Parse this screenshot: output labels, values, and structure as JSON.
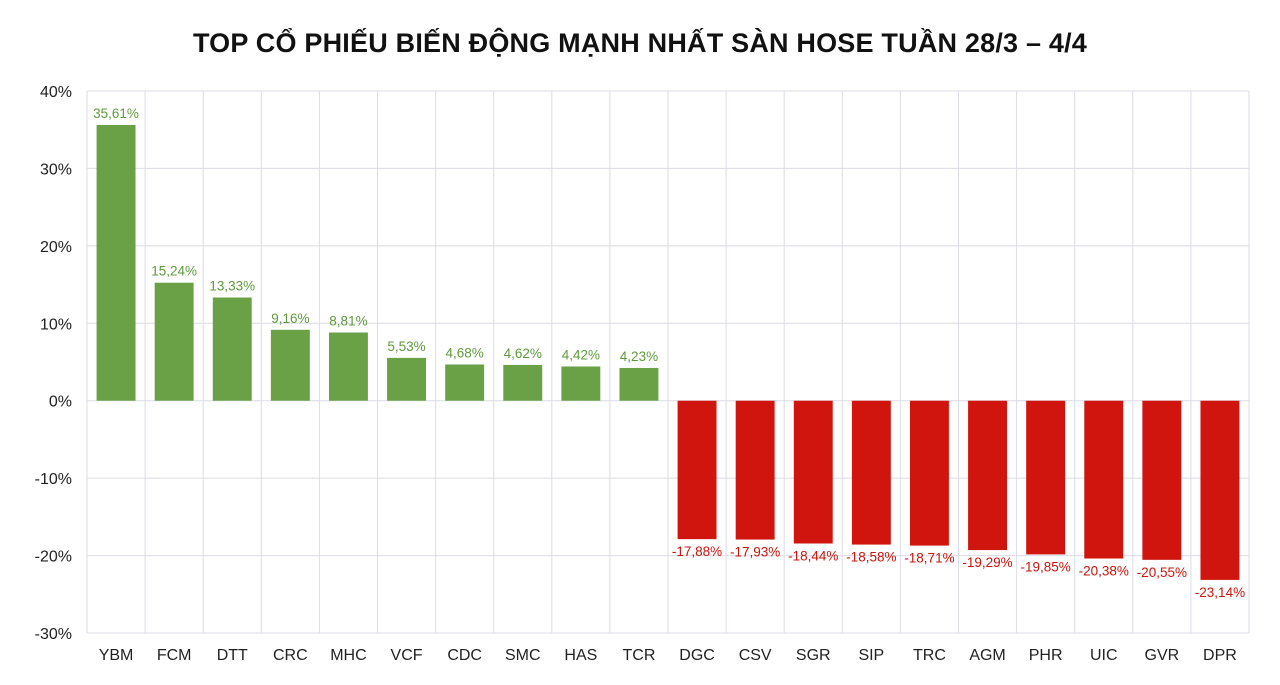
{
  "chart_data": {
    "type": "bar",
    "title": "TOP CỔ PHIẾU BIẾN ĐỘNG MẠNH NHẤT SÀN HOSE TUẦN 28/3 – 4/4",
    "xlabel": "",
    "ylabel": "",
    "ylim": [
      -30,
      40
    ],
    "yticks": [
      "40%",
      "30%",
      "20%",
      "10%",
      "0%",
      "-10%",
      "-20%",
      "-30%"
    ],
    "ytick_values": [
      40,
      30,
      20,
      10,
      0,
      -10,
      -20,
      -30
    ],
    "grid": true,
    "categories": [
      "YBM",
      "FCM",
      "DTT",
      "CRC",
      "MHC",
      "VCF",
      "CDC",
      "SMC",
      "HAS",
      "TCR",
      "DGC",
      "CSV",
      "SGR",
      "SIP",
      "TRC",
      "AGM",
      "PHR",
      "UIC",
      "GVR",
      "DPR"
    ],
    "values": [
      35.61,
      15.24,
      13.33,
      9.16,
      8.81,
      5.53,
      4.68,
      4.62,
      4.42,
      4.23,
      -17.88,
      -17.93,
      -18.44,
      -18.58,
      -18.71,
      -19.29,
      -19.85,
      -20.38,
      -20.55,
      -23.14
    ],
    "data_labels": [
      "35,61%",
      "15,24%",
      "13,33%",
      "9,16%",
      "8,81%",
      "5,53%",
      "4,68%",
      "4,62%",
      "4,42%",
      "4,23%",
      "-17,88%",
      "-17,93%",
      "-18,44%",
      "-18,58%",
      "-18,71%",
      "-19,29%",
      "-19,85%",
      "-20,38%",
      "-20,55%",
      "-23,14%"
    ],
    "colors": {
      "positive": "#6aa046",
      "negative": "#d0150e",
      "positive_label": "#5f9a3c",
      "negative_label": "#c8150e",
      "grid": "#dcdce6"
    }
  }
}
